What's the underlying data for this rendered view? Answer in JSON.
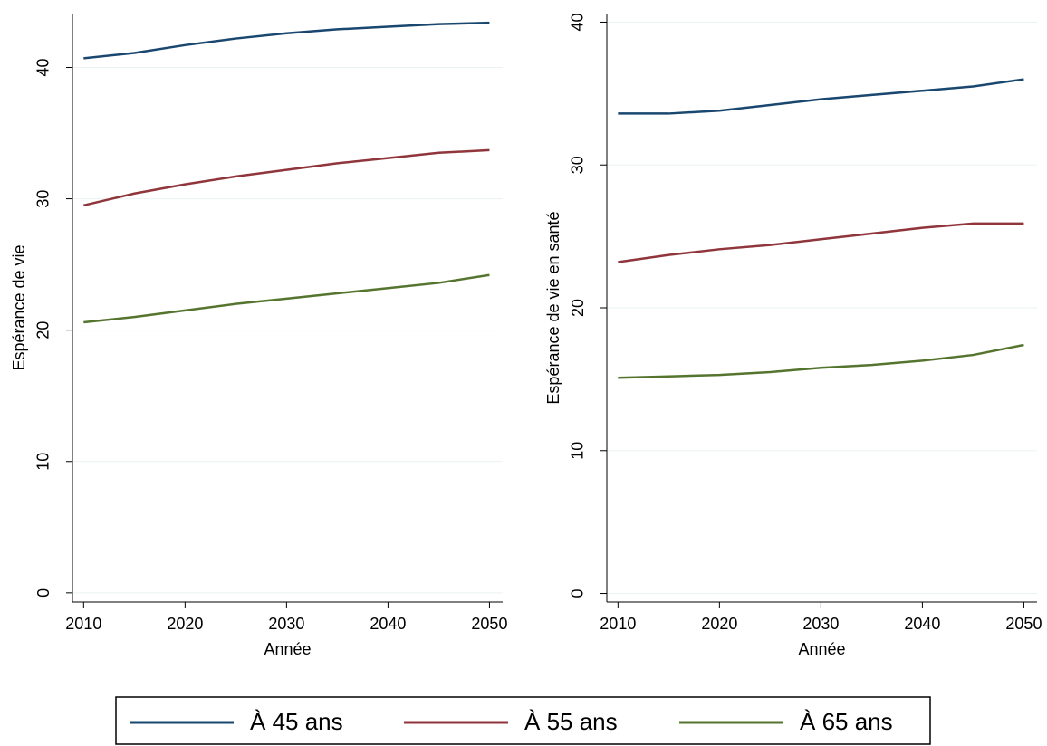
{
  "chart_data": [
    {
      "type": "line",
      "ylabel": "Espérance de vie",
      "xlabel": "Année",
      "x": [
        2010,
        2015,
        2020,
        2025,
        2030,
        2035,
        2040,
        2045,
        2050
      ],
      "xlim": [
        2008.9,
        2051.3
      ],
      "xticks": [
        2010,
        2020,
        2030,
        2040,
        2050
      ],
      "ylim": [
        -0.7,
        44.1
      ],
      "yticks": [
        0,
        10,
        20,
        30,
        40
      ],
      "grid": true,
      "series": [
        {
          "name": "À 45 ans",
          "color": "#1a476f",
          "values": [
            40.7,
            41.1,
            41.7,
            42.2,
            42.6,
            42.9,
            43.1,
            43.3,
            43.4
          ]
        },
        {
          "name": "À 55 ans",
          "color": "#90353b",
          "values": [
            29.5,
            30.4,
            31.1,
            31.7,
            32.2,
            32.7,
            33.1,
            33.5,
            33.7
          ]
        },
        {
          "name": "À 65 ans",
          "color": "#55752f",
          "values": [
            20.6,
            21.0,
            21.5,
            22.0,
            22.4,
            22.8,
            23.2,
            23.6,
            24.2
          ]
        }
      ]
    },
    {
      "type": "line",
      "ylabel": "Espérance de vie en santé",
      "xlabel": "Année",
      "x": [
        2010,
        2015,
        2020,
        2025,
        2030,
        2035,
        2040,
        2045,
        2050
      ],
      "xlim": [
        2008.9,
        2051.3
      ],
      "xticks": [
        2010,
        2020,
        2030,
        2040,
        2050
      ],
      "ylim": [
        -0.6,
        40.6
      ],
      "yticks": [
        0,
        10,
        20,
        30,
        40
      ],
      "grid": true,
      "series": [
        {
          "color": "#1a476f",
          "values": [
            33.6,
            33.6,
            33.8,
            34.2,
            34.6,
            34.9,
            35.2,
            35.5,
            36.0
          ]
        },
        {
          "color": "#90353b",
          "values": [
            23.2,
            23.7,
            24.1,
            24.4,
            24.8,
            25.2,
            25.6,
            25.9,
            25.9
          ]
        },
        {
          "color": "#55752f",
          "values": [
            15.1,
            15.2,
            15.3,
            15.5,
            15.8,
            16.0,
            16.3,
            16.7,
            17.4
          ]
        }
      ]
    }
  ]
}
